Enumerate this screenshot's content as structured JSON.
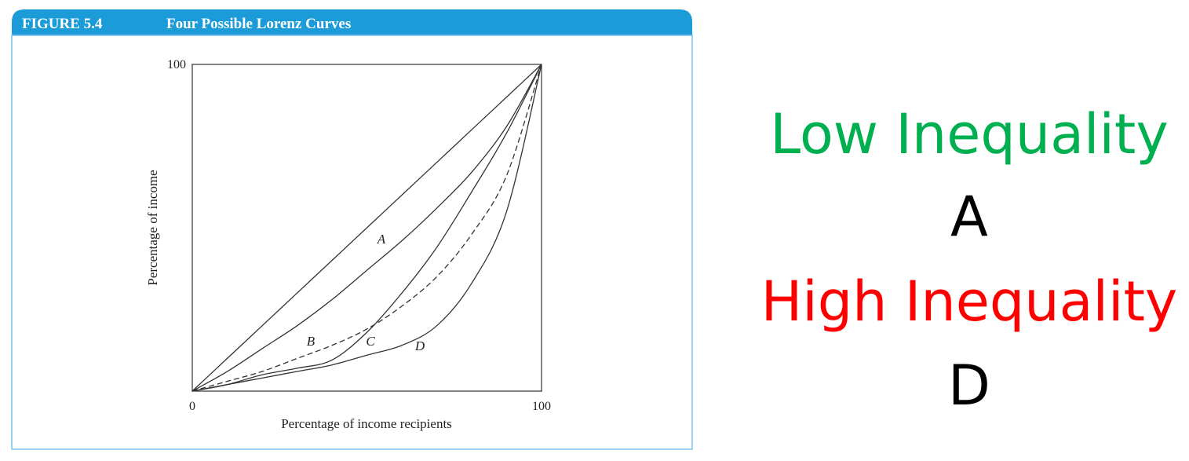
{
  "chart_data": {
    "type": "line",
    "figure_label": "FIGURE 5.4",
    "title": "Four Possible Lorenz Curves",
    "xlabel": "Percentage of income recipients",
    "ylabel": "Percentage of income",
    "x": [
      0,
      10,
      20,
      30,
      40,
      50,
      60,
      70,
      80,
      90,
      100
    ],
    "series": [
      {
        "color": "#333333",
        "values": [
          0,
          10,
          20,
          30,
          40,
          50,
          60,
          70,
          80,
          90,
          100
        ]
      },
      {
        "name": "A",
        "color": "#333333",
        "values": [
          0,
          6,
          13,
          20,
          28,
          37,
          46,
          56,
          67,
          81,
          100
        ]
      },
      {
        "name": "B",
        "color": "#333333",
        "dashed": true,
        "values": [
          0,
          3,
          6,
          10,
          14,
          19,
          26,
          35,
          48,
          66,
          100
        ]
      },
      {
        "name": "C",
        "color": "#333333",
        "values": [
          0,
          2,
          5,
          7,
          9.5,
          18,
          30,
          44,
          61,
          79,
          100
        ]
      },
      {
        "name": "D",
        "color": "#333333",
        "values": [
          0,
          2,
          4,
          6,
          8,
          11,
          14,
          20,
          33,
          55,
          100
        ]
      }
    ],
    "xlim": [
      0,
      100
    ],
    "ylim": [
      0,
      100
    ],
    "xticks": [
      0,
      100
    ],
    "yticks": [
      100
    ],
    "grid": false
  },
  "side_text": {
    "low": "Low Inequality",
    "low_curve": "A",
    "high": "High Inequality",
    "high_curve": "D"
  }
}
